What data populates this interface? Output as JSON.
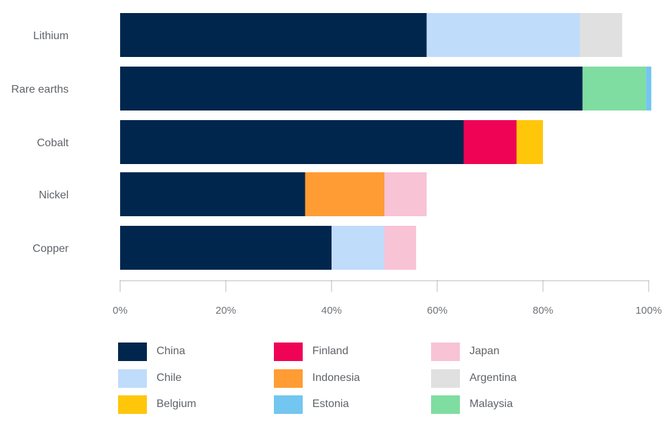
{
  "chart_data": {
    "type": "bar",
    "orientation": "horizontal",
    "stacked": true,
    "categories": [
      "Lithium",
      "Rare earths",
      "Cobalt",
      "Nickel",
      "Copper"
    ],
    "series": [
      {
        "name": "China",
        "color": "#00264d",
        "values": [
          58,
          87.5,
          65,
          35,
          40
        ]
      },
      {
        "name": "Chile",
        "color": "#c0dcfb",
        "values": [
          29,
          0,
          0,
          0,
          10
        ]
      },
      {
        "name": "Argentina",
        "color": "#e0e0e0",
        "values": [
          8,
          0,
          0,
          0,
          0
        ]
      },
      {
        "name": "Malaysia",
        "color": "#7fdda1",
        "values": [
          0,
          12,
          0,
          0,
          0
        ]
      },
      {
        "name": "Estonia",
        "color": "#73c6ef",
        "values": [
          0,
          1,
          0,
          0,
          0
        ]
      },
      {
        "name": "Finland",
        "color": "#ef0455",
        "values": [
          0,
          0,
          10,
          0,
          0
        ]
      },
      {
        "name": "Belgium",
        "color": "#ffc60a",
        "values": [
          0,
          0,
          5,
          0,
          0
        ]
      },
      {
        "name": "Indonesia",
        "color": "#ff9c34",
        "values": [
          0,
          0,
          0,
          15,
          0
        ]
      },
      {
        "name": "Japan",
        "color": "#f8c3d5",
        "values": [
          0,
          0,
          0,
          8,
          6
        ]
      }
    ],
    "xlim": [
      0,
      100
    ],
    "xticks": [
      0,
      20,
      40,
      60,
      80,
      100
    ],
    "xtick_labels": [
      "0%",
      "20%",
      "40%",
      "60%",
      "80%",
      "100%"
    ],
    "legend": [
      {
        "name": "China",
        "color": "#00264d"
      },
      {
        "name": "Chile",
        "color": "#c0dcfb"
      },
      {
        "name": "Belgium",
        "color": "#ffc60a"
      },
      {
        "name": "Finland",
        "color": "#ef0455"
      },
      {
        "name": "Indonesia",
        "color": "#ff9c34"
      },
      {
        "name": "Estonia",
        "color": "#73c6ef"
      },
      {
        "name": "Japan",
        "color": "#f8c3d5"
      },
      {
        "name": "Argentina",
        "color": "#e0e0e0"
      },
      {
        "name": "Malaysia",
        "color": "#7fdda1"
      }
    ],
    "legend_placement": "bottom",
    "grid": false
  }
}
